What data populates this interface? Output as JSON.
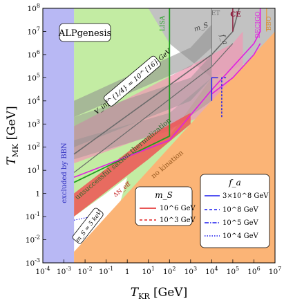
{
  "chart_data": {
    "type": "region-plot",
    "title": "",
    "xlabel": "T_KR [GeV]",
    "ylabel": "T_MK [GeV]",
    "x_scale": "log",
    "y_scale": "log",
    "xlim": [
      0.0001,
      10000000
    ],
    "ylim": [
      0.001,
      100000000
    ],
    "x_tick_labels": [
      "10^-4",
      "10^-3",
      "10^-2",
      "10^-1",
      "1",
      "10^1",
      "10^2",
      "10^3",
      "10^4",
      "10^5",
      "10^6",
      "10^7"
    ],
    "y_tick_labels": [
      "10^-3",
      "10^-2",
      "10^-1",
      "1",
      "10^1",
      "10^2",
      "10^3",
      "10^4",
      "10^5",
      "10^6",
      "10^7",
      "10^8"
    ],
    "x_tick_values": [
      0.0001,
      0.001,
      0.01,
      0.1,
      1,
      10,
      100,
      1000,
      10000,
      100000,
      1000000,
      10000000
    ],
    "y_tick_values": [
      0.001,
      0.01,
      0.1,
      1,
      10,
      100,
      1000,
      10000,
      100000,
      1000000,
      10000000,
      100000000
    ],
    "colors": {
      "bbn": "#b8b8f4",
      "no_kination": "#fbb476",
      "saxion_thermalization": "#c3eca3",
      "detector_grey": "#c2c2c2",
      "grey_band": "#8e8e8e",
      "pink": "#ef9ab4",
      "red": "#ef5555",
      "lisa": "#1e9e1e",
      "decigo": "#e01ee0",
      "bbo": "#e0a050",
      "fa_blue": "#1a1aee"
    },
    "regions": [
      {
        "name": "BBN",
        "label": "excluded by BBN",
        "color": "#b8b8f4"
      },
      {
        "name": "no_kination",
        "label": "no kination",
        "color": "#fbb476"
      },
      {
        "name": "saxion",
        "label": "unsuccessful saxion thermalization",
        "color": "#c3eca3"
      }
    ],
    "detectors": [
      {
        "name": "LISA",
        "label": "LISA",
        "color": "#1e9e1e",
        "vertical_at_x": 100,
        "y_top": 100000000,
        "y_bottom": 300
      },
      {
        "name": "ET",
        "label": "ET",
        "color": "#808080",
        "vertical_at_x": 10000,
        "y_top": 100000000
      },
      {
        "name": "CE",
        "label": "CE",
        "color": "#8a1a3a",
        "vertical_at_x": 100000,
        "y_top": 100000000
      },
      {
        "name": "DECIGO",
        "label": "DECIGO",
        "color": "#e01ee0",
        "vertical_at_x": 2000000,
        "y_top": 100000000
      },
      {
        "name": "BBO",
        "label": "BBO",
        "color": "#e0a050",
        "vertical_at_x": 4000000,
        "y_top": 100000000
      }
    ],
    "annotations": {
      "alpgenesis": "ALPgenesis",
      "bbn": "excluded by BBN",
      "saxion": "unsuccessful saxion thermalization",
      "no_kination": "no kination",
      "vinf": "V_inf^{1/4} = 10^{16} GeV",
      "ms_small": "m_S = 5 keV",
      "ms_top": "m_S",
      "fa_top": "f_a",
      "dneff": "ΔN_eff"
    },
    "legend_ms": {
      "title": "m_S",
      "placement": "center-right",
      "entries": [
        {
          "label": "10^6 GeV",
          "style": "solid",
          "color": "#e01e1e"
        },
        {
          "label": "10^3 GeV",
          "style": "dashed",
          "color": "#e01e1e"
        }
      ]
    },
    "legend_fa": {
      "title": "f_a",
      "placement": "lower-right",
      "entries": [
        {
          "label": "3×10^8 GeV",
          "style": "solid",
          "color": "#1a1aee"
        },
        {
          "label": "10^8 GeV",
          "style": "dashed",
          "color": "#1a1aee"
        },
        {
          "label": "10^5 GeV",
          "style": "dashdot",
          "color": "#1a1aee"
        },
        {
          "label": "10^4 GeV",
          "style": "dotted",
          "color": "#1a1aee"
        }
      ]
    }
  }
}
